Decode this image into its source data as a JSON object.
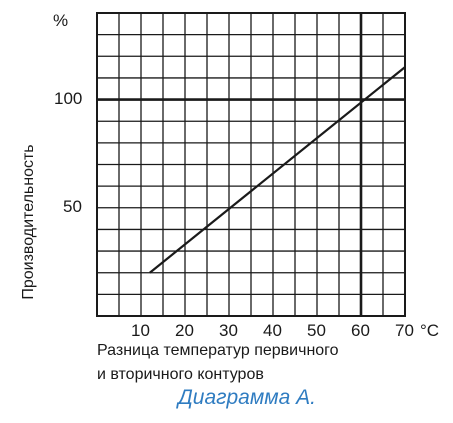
{
  "chart_data": {
    "type": "line",
    "title": "Диаграмма А.",
    "xlabel_line1": "Разница температур первичного",
    "xlabel_line2": "и вторичного контуров",
    "ylabel": "Производительность",
    "x_unit": "°C",
    "y_unit": "%",
    "xlim": [
      0,
      70
    ],
    "ylim": [
      0,
      140
    ],
    "x_ticks": [
      10,
      20,
      30,
      40,
      50,
      60,
      70
    ],
    "y_ticks": [
      50,
      100
    ],
    "grid": true,
    "x_grid_step": 5,
    "y_grid_step": 10,
    "highlight_lines": {
      "x": 60,
      "y": 100
    },
    "series": [
      {
        "x": [
          12,
          70
        ],
        "y": [
          20,
          115
        ]
      }
    ]
  }
}
